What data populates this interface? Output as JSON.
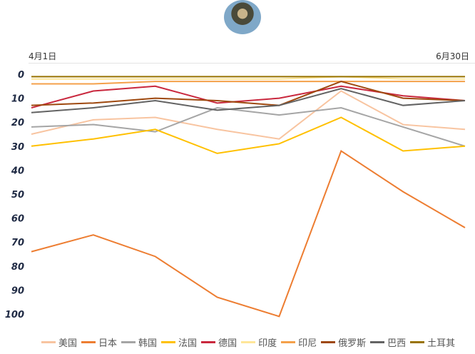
{
  "chart_data": {
    "type": "line",
    "x_start_label": "4月1日",
    "x_end_label": "6月30日",
    "y_inverted": true,
    "ylim": [
      0,
      100
    ],
    "yticks": [
      0,
      10,
      20,
      30,
      40,
      50,
      60,
      70,
      80,
      90,
      100
    ],
    "grid": false,
    "legend_position": "bottom",
    "series": [
      {
        "name": "美国",
        "color": "#f8c4a0",
        "values": [
          25,
          19,
          18,
          23,
          27,
          7,
          21,
          23
        ]
      },
      {
        "name": "日本",
        "color": "#ed7d31",
        "values": [
          74,
          67,
          76,
          93,
          101,
          32,
          49,
          64
        ]
      },
      {
        "name": "韩国",
        "color": "#a5a5a5",
        "values": [
          22,
          21,
          24,
          14,
          17,
          14,
          22,
          30
        ]
      },
      {
        "name": "法国",
        "color": "#ffc000",
        "values": [
          30,
          27,
          23,
          33,
          29,
          18,
          32,
          30
        ]
      },
      {
        "name": "德国",
        "color": "#c9283e",
        "values": [
          14,
          7,
          5,
          12,
          10,
          5,
          9,
          11
        ]
      },
      {
        "name": "印度",
        "color": "#ffe699",
        "values": [
          2,
          2,
          2,
          2,
          2,
          1,
          2,
          2
        ]
      },
      {
        "name": "印尼",
        "color": "#f4a04a",
        "values": [
          4,
          4,
          3,
          3,
          3,
          3,
          3,
          3
        ]
      },
      {
        "name": "俄罗斯",
        "color": "#9e480e",
        "values": [
          13,
          12,
          10,
          11,
          13,
          3,
          10,
          11
        ]
      },
      {
        "name": "巴西",
        "color": "#636363",
        "values": [
          16,
          14,
          11,
          15,
          13,
          6,
          13,
          11
        ]
      },
      {
        "name": "土耳其",
        "color": "#997300",
        "values": [
          1,
          1,
          1,
          1,
          1,
          1,
          1,
          1
        ]
      }
    ]
  }
}
